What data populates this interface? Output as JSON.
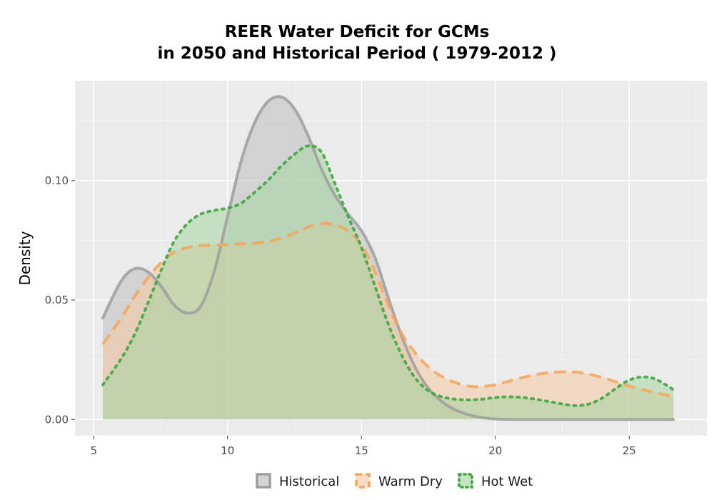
{
  "chart_data": {
    "type": "area",
    "title_line1": "REER  Water Deficit for GCMs",
    "title_line2": "in 2050 and Historical Period ( 1979-2012 )",
    "xlabel": "",
    "ylabel": "Density",
    "xlim": [
      4.3,
      27.9
    ],
    "ylim": [
      -0.0068,
      0.1418
    ],
    "x_ticks": [
      5,
      10,
      15,
      20,
      25
    ],
    "x_tick_labels": [
      "5",
      "10",
      "15",
      "20",
      "25"
    ],
    "y_ticks": [
      0.0,
      0.05,
      0.1
    ],
    "y_tick_labels": [
      "0.00",
      "0.05",
      "0.10"
    ],
    "grid": true,
    "legend_position": "bottom",
    "series": [
      {
        "name": "Historical",
        "color": "#9e9e9e",
        "fill": "#bdbdbd",
        "line_style": "solid",
        "x": [
          5.34,
          6.0,
          6.5,
          7.0,
          7.5,
          8.0,
          8.5,
          9.0,
          9.5,
          10.0,
          10.5,
          11.0,
          11.5,
          12.0,
          12.5,
          13.0,
          13.5,
          14.0,
          14.5,
          15.0,
          15.5,
          16.0,
          16.5,
          17.0,
          17.5,
          18.0,
          18.5,
          19.0,
          19.5,
          20.0,
          21.0,
          22.0,
          23.0,
          24.0,
          25.0,
          26.0,
          26.65
        ],
        "y": [
          0.0425,
          0.0575,
          0.063,
          0.062,
          0.056,
          0.048,
          0.0445,
          0.0475,
          0.062,
          0.085,
          0.108,
          0.124,
          0.133,
          0.135,
          0.13,
          0.119,
          0.105,
          0.094,
          0.086,
          0.079,
          0.068,
          0.051,
          0.035,
          0.022,
          0.013,
          0.0075,
          0.004,
          0.002,
          0.0008,
          0.0002,
          0.0,
          0.0,
          0.0,
          0.0,
          0.0,
          0.0,
          0.0
        ]
      },
      {
        "name": "Warm Dry",
        "color": "#f5a55a",
        "fill": "#f5c9a0",
        "line_style": "dashed",
        "x": [
          5.34,
          6.0,
          6.5,
          7.0,
          7.5,
          8.0,
          8.5,
          9.0,
          9.5,
          10.0,
          10.5,
          11.0,
          11.5,
          12.0,
          12.5,
          13.0,
          13.5,
          14.0,
          14.5,
          15.0,
          15.5,
          16.0,
          16.5,
          17.0,
          17.5,
          18.0,
          18.5,
          19.0,
          19.5,
          20.0,
          20.5,
          21.0,
          21.5,
          22.0,
          22.5,
          23.0,
          23.5,
          24.0,
          24.5,
          25.0,
          25.5,
          26.0,
          26.65
        ],
        "y": [
          0.0315,
          0.042,
          0.051,
          0.059,
          0.0655,
          0.07,
          0.072,
          0.0728,
          0.073,
          0.0732,
          0.0735,
          0.0738,
          0.0745,
          0.076,
          0.078,
          0.0805,
          0.082,
          0.0815,
          0.079,
          0.073,
          0.062,
          0.048,
          0.036,
          0.028,
          0.022,
          0.018,
          0.0155,
          0.014,
          0.0138,
          0.0145,
          0.016,
          0.0175,
          0.0188,
          0.0196,
          0.02,
          0.0198,
          0.019,
          0.0175,
          0.0158,
          0.014,
          0.0125,
          0.0112,
          0.0095
        ]
      },
      {
        "name": "Hot Wet",
        "color": "#3aa53a",
        "fill": "#a6d5a0",
        "line_style": "dotted",
        "x": [
          5.34,
          6.0,
          6.5,
          7.0,
          7.5,
          8.0,
          8.5,
          9.0,
          9.5,
          10.0,
          10.5,
          11.0,
          11.5,
          12.0,
          12.5,
          13.0,
          13.5,
          14.0,
          14.5,
          15.0,
          15.5,
          16.0,
          16.5,
          17.0,
          17.5,
          18.0,
          18.5,
          19.0,
          19.5,
          20.0,
          20.5,
          21.0,
          21.5,
          22.0,
          22.5,
          23.0,
          23.5,
          24.0,
          24.5,
          25.0,
          25.5,
          26.0,
          26.65
        ],
        "y": [
          0.0145,
          0.025,
          0.035,
          0.048,
          0.062,
          0.0745,
          0.082,
          0.086,
          0.0875,
          0.0885,
          0.0905,
          0.095,
          0.1,
          0.106,
          0.111,
          0.1145,
          0.112,
          0.099,
          0.085,
          0.072,
          0.056,
          0.04,
          0.027,
          0.0175,
          0.012,
          0.0095,
          0.0085,
          0.0082,
          0.0085,
          0.0092,
          0.0095,
          0.0092,
          0.0085,
          0.0075,
          0.0065,
          0.0058,
          0.0065,
          0.009,
          0.013,
          0.0165,
          0.0178,
          0.0168,
          0.0125
        ]
      }
    ]
  }
}
